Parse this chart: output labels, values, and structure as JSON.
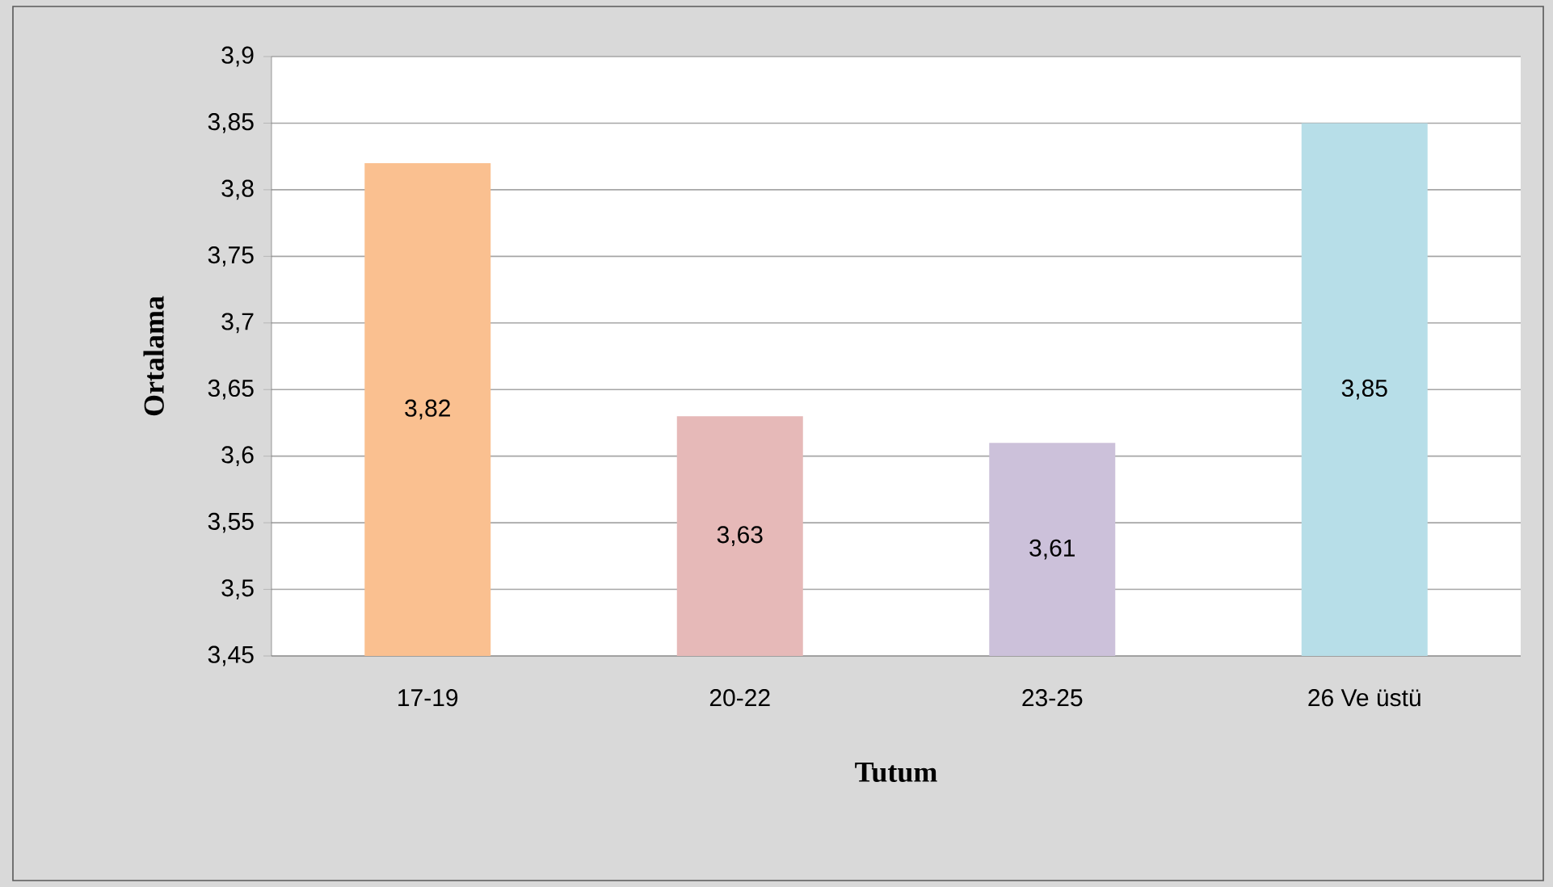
{
  "chart_data": {
    "type": "bar",
    "xlabel": "Tutum",
    "ylabel": "Ortalama",
    "categories": [
      "17-19",
      "20-22",
      "23-25",
      "26 Ve üstü"
    ],
    "values": [
      3.82,
      3.63,
      3.61,
      3.85
    ],
    "colors": [
      "#fac090",
      "#e6b9b8",
      "#ccc1da",
      "#b7dee8"
    ],
    "value_labels": [
      "3,82",
      "3,63",
      "3,61",
      "3,85"
    ],
    "ylim": [
      3.45,
      3.9
    ],
    "yticks": [
      {
        "value": 3.45,
        "label": "3,45"
      },
      {
        "value": 3.5,
        "label": "3,5"
      },
      {
        "value": 3.55,
        "label": "3,55"
      },
      {
        "value": 3.6,
        "label": "3,6"
      },
      {
        "value": 3.65,
        "label": "3,65"
      },
      {
        "value": 3.7,
        "label": "3,7"
      },
      {
        "value": 3.75,
        "label": "3,75"
      },
      {
        "value": 3.8,
        "label": "3,8"
      },
      {
        "value": 3.85,
        "label": "3,85"
      },
      {
        "value": 3.9,
        "label": "3,9"
      }
    ],
    "grid": "y"
  }
}
